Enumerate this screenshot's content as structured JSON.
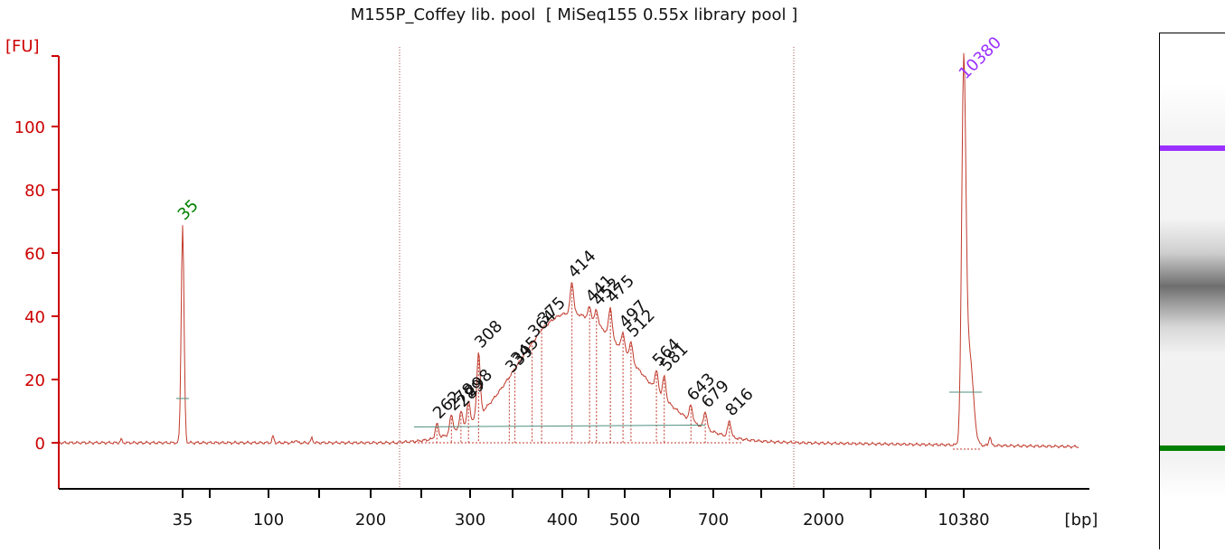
{
  "title": "M155P_Coffey lib. pool  [ MiSeq155 0.55x library pool ]",
  "chart_data": {
    "type": "line",
    "title": "M155P_Coffey lib. pool  [ MiSeq155 0.55x library pool ]",
    "ylabel": "[FU]",
    "xlabel": "[bp]",
    "ylim": [
      -15,
      125
    ],
    "yticks": [
      0,
      20,
      40,
      60,
      80,
      100
    ],
    "xticks": [
      "35",
      "100",
      "200",
      "300",
      "400",
      "500",
      "700",
      "2000",
      "10380"
    ],
    "grid": false,
    "colors": {
      "trace": "#c0392b",
      "axis": "#cc0000",
      "lower_marker": "#008000",
      "upper_marker": "#9b30ff",
      "baseline": "#4f8f7f"
    },
    "markers": [
      {
        "label": "35",
        "fu": 69,
        "role": "lower"
      },
      {
        "label": "10380",
        "fu": 113,
        "role": "upper"
      }
    ],
    "peaks": [
      {
        "bp": 262,
        "fu": 6
      },
      {
        "bp": 278,
        "fu": 9
      },
      {
        "bp": 289,
        "fu": 10
      },
      {
        "bp": 298,
        "fu": 13
      },
      {
        "bp": 308,
        "fu": 29
      },
      {
        "bp": 339,
        "fu": 18
      },
      {
        "bp": 345,
        "fu": 22
      },
      {
        "bp": 364,
        "fu": 31
      },
      {
        "bp": 375,
        "fu": 36
      },
      {
        "bp": 414,
        "fu": 51
      },
      {
        "bp": 441,
        "fu": 43
      },
      {
        "bp": 452,
        "fu": 42
      },
      {
        "bp": 475,
        "fu": 43
      },
      {
        "bp": 497,
        "fu": 35
      },
      {
        "bp": 512,
        "fu": 32
      },
      {
        "bp": 564,
        "fu": 23
      },
      {
        "bp": 581,
        "fu": 21
      },
      {
        "bp": 643,
        "fu": 12
      },
      {
        "bp": 679,
        "fu": 10
      },
      {
        "bp": 816,
        "fu": 7
      }
    ]
  },
  "gel": {
    "bands": [
      {
        "role": "upper marker",
        "color": "#9b30ff"
      },
      {
        "role": "library smear",
        "color": "#555555"
      },
      {
        "role": "lower marker",
        "color": "#008000"
      }
    ]
  }
}
